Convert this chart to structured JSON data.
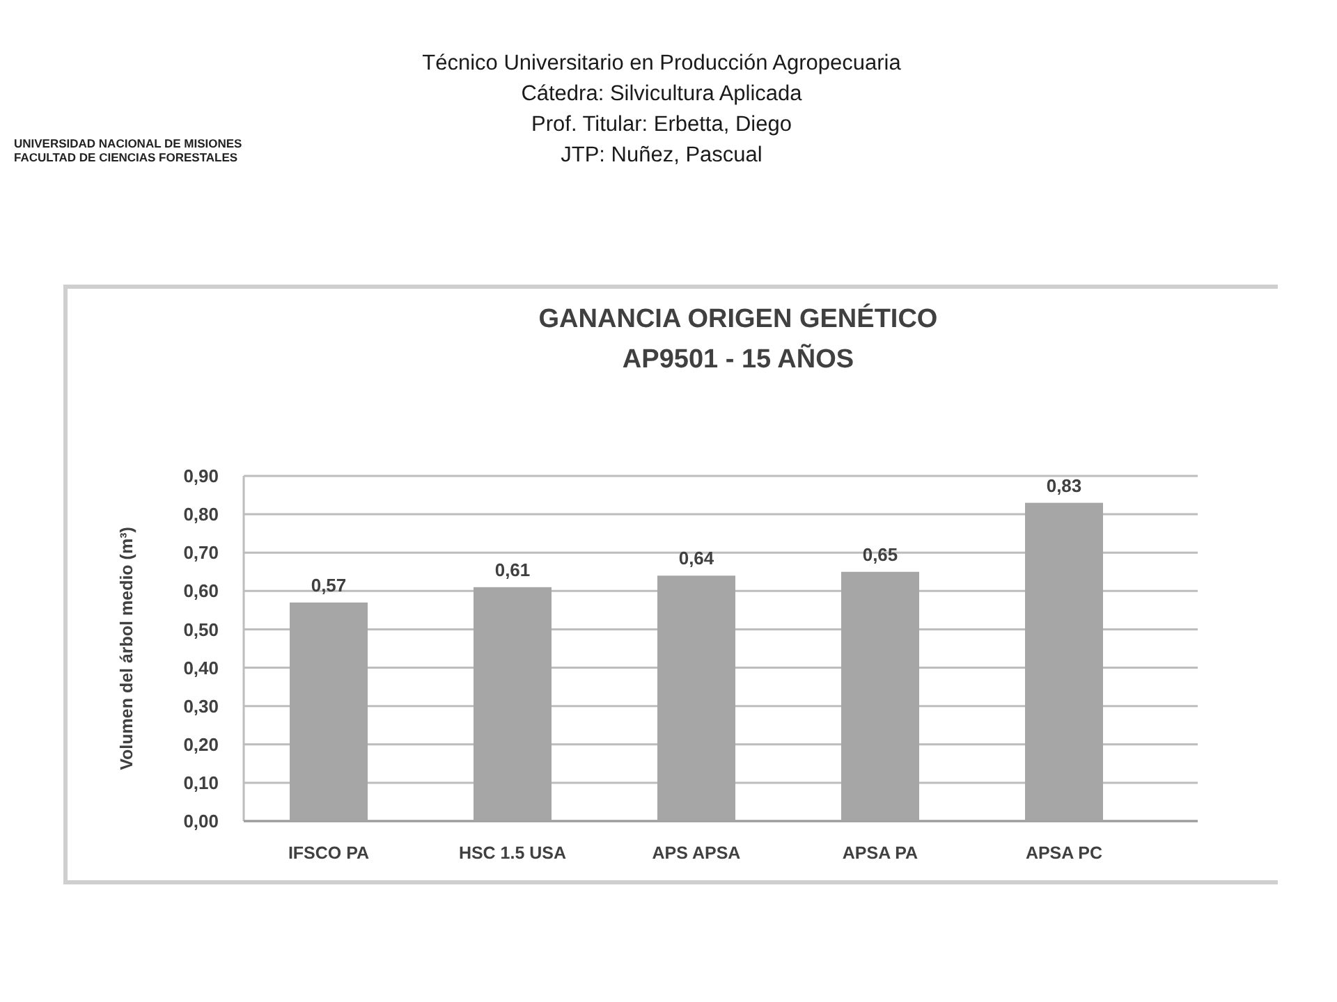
{
  "chart_data": {
    "type": "bar",
    "title": "GANANCIA ORIGEN GENÉTICO",
    "subtitle": "AP9501 - 15 AÑOS",
    "ylabel": "Volumen del árbol medio (m³)",
    "annotations": [
      "Técnico Universitario en Producción  Agropecuaria",
      "Cátedra: Silvicultura Aplicada",
      "Prof. Titular:  Erbetta, Diego",
      "JTP: Nuñez, Pascual",
      "UNIVERSIDAD NACIONAL DE MISIONES",
      "FACULTAD DE CIENCIAS FORESTALES"
    ],
    "categories": [
      "IFSCO PA",
      "HSC 1.5 USA",
      "APS APSA",
      "APSA PA",
      "APSA PC"
    ],
    "values": [
      0.57,
      0.61,
      0.64,
      0.65,
      0.83
    ],
    "value_labels": [
      "0,57",
      "0,61",
      "0,64",
      "0,65",
      "0,83"
    ],
    "color": "#a6a6a6",
    "ylim": [
      0,
      0.9
    ],
    "yticks": [
      {
        "value": 0,
        "label": "0,00"
      },
      {
        "value": 0.1,
        "label": "0,10"
      },
      {
        "value": 0.2,
        "label": "0,20"
      },
      {
        "value": 0.3,
        "label": "0,30"
      },
      {
        "value": 0.4,
        "label": "0,40"
      },
      {
        "value": 0.5,
        "label": "0,50"
      },
      {
        "value": 0.6,
        "label": "0,60"
      },
      {
        "value": 0.7,
        "label": "0,70"
      },
      {
        "value": 0.8,
        "label": "0,80"
      },
      {
        "value": 0.9,
        "label": "0,90"
      }
    ],
    "grid": "y"
  }
}
